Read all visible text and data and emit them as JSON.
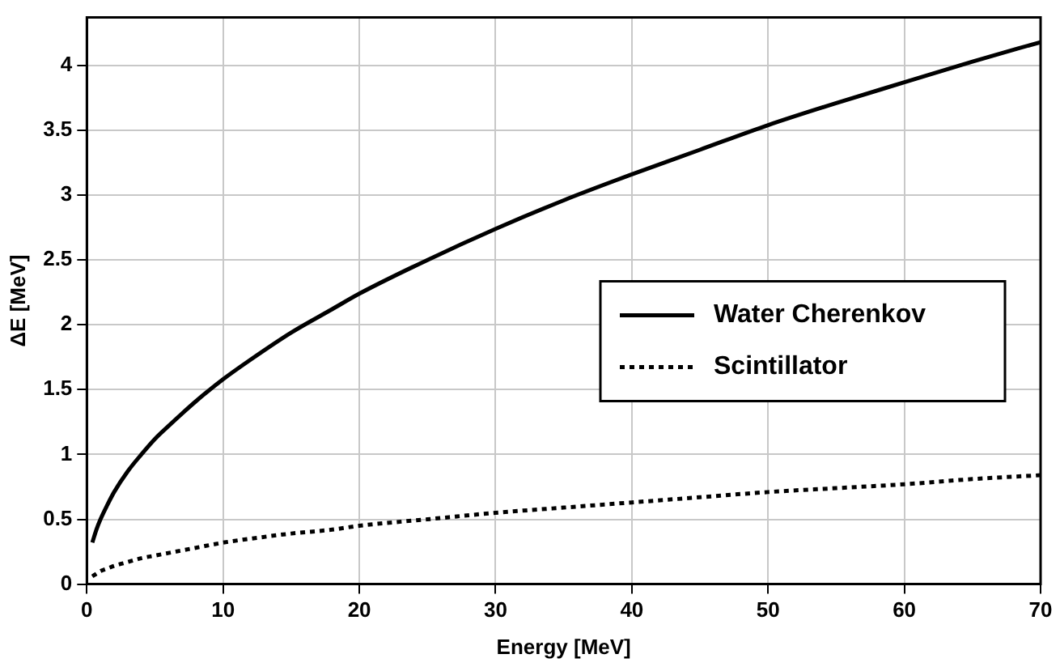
{
  "chart_data": {
    "type": "line",
    "xlabel": "Energy [MeV]",
    "ylabel": "ΔE [MeV]",
    "xlim": [
      0,
      70
    ],
    "ylim": [
      0,
      4.37
    ],
    "xticks": [
      0,
      10,
      20,
      30,
      40,
      50,
      60,
      70
    ],
    "yticks": [
      0,
      0.5,
      1,
      1.5,
      2,
      2.5,
      3,
      3.5,
      4
    ],
    "grid": true,
    "legend": "center right",
    "marker": "none",
    "series": [
      {
        "name": "Water Cherenkov",
        "color": "#000000",
        "line_style": "solid",
        "x": [
          0.4,
          0.7,
          1,
          1.5,
          2,
          3,
          4,
          5,
          6,
          8,
          10,
          12,
          15,
          18,
          20,
          25,
          30,
          35,
          40,
          45,
          50,
          55,
          60,
          65,
          70
        ],
        "values": [
          0.32,
          0.42,
          0.5,
          0.61,
          0.71,
          0.87,
          1,
          1.12,
          1.22,
          1.41,
          1.58,
          1.73,
          1.94,
          2.12,
          2.24,
          2.5,
          2.74,
          2.96,
          3.16,
          3.35,
          3.54,
          3.71,
          3.87,
          4.03,
          4.18
        ]
      },
      {
        "name": "Scintillator",
        "color": "#000000",
        "line_style": "dotted",
        "x": [
          0.4,
          0.7,
          1,
          1.5,
          2,
          3,
          4,
          5,
          6,
          8,
          10,
          12,
          15,
          18,
          20,
          25,
          30,
          35,
          40,
          45,
          50,
          55,
          60,
          65,
          70
        ],
        "values": [
          0.06,
          0.08,
          0.1,
          0.12,
          0.14,
          0.17,
          0.2,
          0.22,
          0.24,
          0.28,
          0.32,
          0.35,
          0.39,
          0.42,
          0.45,
          0.5,
          0.55,
          0.59,
          0.63,
          0.67,
          0.71,
          0.74,
          0.77,
          0.81,
          0.84
        ]
      }
    ]
  }
}
